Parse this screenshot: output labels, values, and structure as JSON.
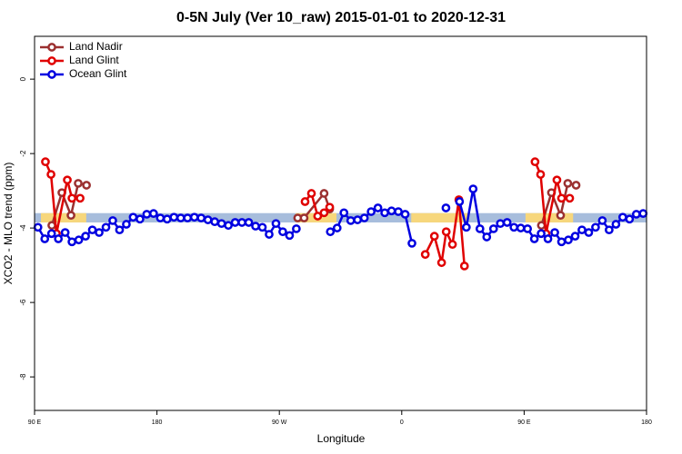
{
  "chart_data": {
    "type": "line",
    "title": "0-5N July (Ver 10_raw)   2015-01-01 to 2020-12-31",
    "x_label": "Longitude",
    "y_label": "XCO2 - MLO trend (ppm)",
    "xlim": [
      90,
      540
    ],
    "ylim": [
      -8.9,
      1.15
    ],
    "xticks": [
      {
        "value": 90,
        "label": "90 E"
      },
      {
        "value": 180,
        "label": "180"
      },
      {
        "value": 270,
        "label": "90 W"
      },
      {
        "value": 360,
        "label": "0"
      },
      {
        "value": 450,
        "label": "90 E"
      },
      {
        "value": 540,
        "label": "180"
      }
    ],
    "yticks": [
      0,
      -2,
      -4,
      -6,
      -8
    ],
    "legend": "upper left",
    "reference_band": {
      "range": [
        -3.85,
        -3.6
      ],
      "color": "#a7bddc"
    },
    "highlight_ranges": {
      "ranges": [
        [
          94.7,
          128
        ],
        [
          282,
          312
        ],
        [
          367,
          409
        ],
        [
          451,
          486
        ]
      ],
      "color": "#f7d77c"
    },
    "series": [
      {
        "name": "Land Nadir",
        "color": "#9b3030",
        "x": [
          102.7,
          110.1,
          116.8,
          122.1,
          128.2,
          null,
          283.5,
          288.2,
          302.9,
          307.0,
          null,
          462.7,
          470.1,
          476.8,
          482.1,
          488.2
        ],
        "values": [
          -3.93,
          -3.05,
          -3.66,
          -2.8,
          -2.85,
          null,
          -3.73,
          -3.73,
          -3.07,
          -3.49,
          null,
          -3.93,
          -3.05,
          -3.66,
          -2.8,
          -2.85
        ]
      },
      {
        "name": "Land Glint",
        "color": "#e00000",
        "x": [
          98.0,
          102.1,
          106.1,
          114.1,
          117.5,
          123.5,
          null,
          288.9,
          293.6,
          298.2,
          302.9,
          307.0,
          null,
          377.3,
          384.0,
          389.3,
          392.7,
          397.3,
          402.0,
          406.1,
          null,
          458.0,
          462.1,
          466.1,
          474.1,
          477.5,
          483.5
        ],
        "values": [
          -2.22,
          -2.56,
          -4.15,
          -2.71,
          -3.2,
          -3.2,
          null,
          -3.29,
          -3.07,
          -3.68,
          -3.59,
          -3.44,
          null,
          -4.71,
          -4.22,
          -4.93,
          -4.1,
          -4.44,
          -3.24,
          -5.02,
          null,
          -2.22,
          -2.56,
          -4.15,
          -2.71,
          -3.2,
          -3.2
        ]
      },
      {
        "name": "Ocean Glint",
        "color": "#0000e0",
        "x": [
          92.5,
          97.5,
          102.5,
          107.5,
          112.5,
          117.5,
          122.5,
          127.5,
          132.5,
          137.5,
          142.5,
          147.5,
          152.5,
          157.5,
          162.5,
          167.5,
          172.5,
          177.5,
          182.5,
          187.5,
          192.5,
          197.5,
          202.5,
          207.5,
          212.5,
          217.5,
          222.5,
          227.5,
          232.5,
          237.5,
          242.5,
          247.5,
          252.5,
          257.5,
          262.5,
          267.5,
          272.5,
          277.5,
          282.5,
          287.5,
          292.5,
          297.5,
          302.5,
          307.5,
          312.5,
          317.5,
          322.5,
          327.5,
          332.5,
          337.5,
          342.5,
          347.5,
          352.5,
          357.5,
          362.5,
          367.5,
          372.5,
          377.5,
          382.5,
          387.5,
          392.5,
          397.5,
          402.5,
          407.5,
          412.5,
          417.5,
          422.5,
          427.5,
          432.5,
          437.5,
          442.5,
          447.5,
          452.5,
          457.5,
          462.5,
          467.5,
          472.5,
          477.5,
          482.5,
          487.5,
          492.5,
          497.5,
          502.5,
          507.5,
          512.5,
          517.5,
          522.5,
          527.5,
          532.5,
          537.5
        ],
        "values": [
          -3.98,
          -4.29,
          -4.15,
          -4.29,
          -4.12,
          -4.37,
          -4.32,
          -4.22,
          -4.05,
          -4.12,
          -3.98,
          -3.8,
          -4.05,
          -3.9,
          -3.71,
          -3.76,
          -3.63,
          -3.61,
          -3.73,
          -3.76,
          -3.71,
          -3.73,
          -3.73,
          -3.71,
          -3.73,
          -3.78,
          -3.83,
          -3.88,
          -3.93,
          -3.85,
          -3.85,
          -3.85,
          -3.95,
          -3.98,
          -4.17,
          -3.88,
          -4.1,
          -4.2,
          -4.02,
          null,
          null,
          null,
          null,
          -4.1,
          -4.0,
          -3.59,
          -3.8,
          -3.78,
          -3.73,
          -3.56,
          -3.46,
          -3.59,
          -3.54,
          -3.56,
          -3.63,
          -4.41,
          null,
          null,
          null,
          null,
          -3.46,
          null,
          -3.29,
          -3.98,
          -2.95,
          -4.02,
          -4.24,
          -4.02,
          -3.88,
          -3.85,
          -3.98,
          -4.0,
          -4.02,
          -4.29,
          -4.15,
          -4.29,
          -4.12,
          -4.37,
          -4.32,
          -4.22,
          -4.05,
          -4.12,
          -3.98,
          -3.8,
          -4.05,
          -3.9,
          -3.71,
          -3.76,
          -3.63,
          -3.61
        ]
      }
    ]
  }
}
